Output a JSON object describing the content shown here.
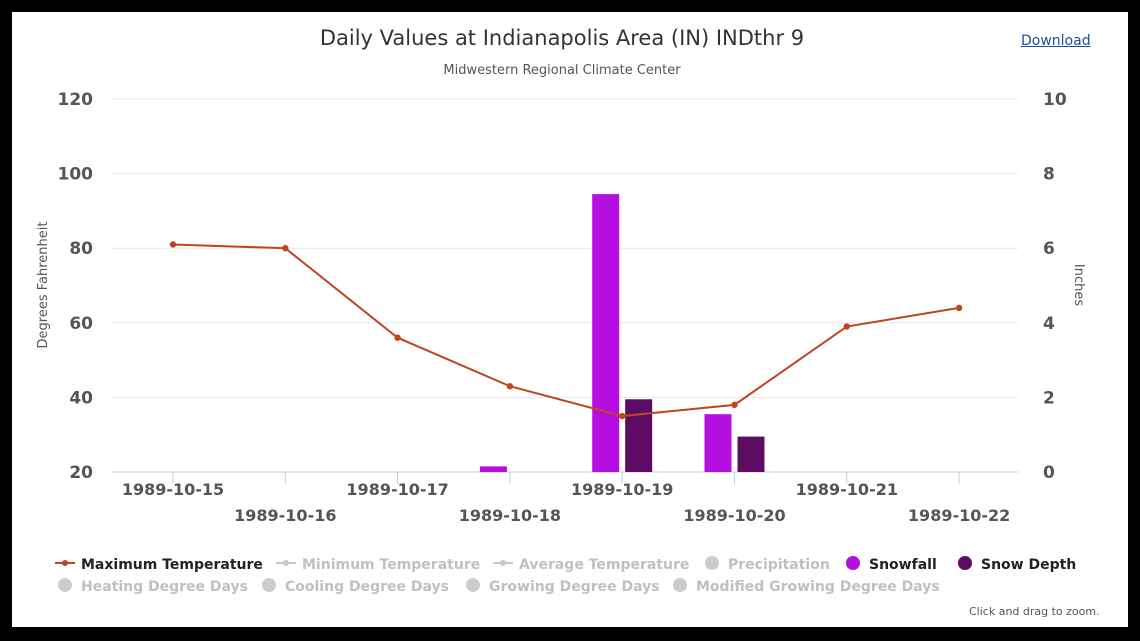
{
  "header": {
    "title": "Daily Values at Indianapolis Area (IN) INDthr 9",
    "subtitle": "Midwestern Regional Climate Center",
    "download_label": "Download"
  },
  "footer": {
    "zoom_hint": "Click and drag to zoom."
  },
  "chart_data": {
    "type": "bar",
    "categories": [
      "1989-10-15",
      "1989-10-16",
      "1989-10-17",
      "1989-10-18",
      "1989-10-19",
      "1989-10-20",
      "1989-10-21",
      "1989-10-22"
    ],
    "ylabel_left": "Degrees Fahrenheit",
    "ylabel_right": "Inches",
    "ylim_left": [
      20,
      120
    ],
    "ylim_right": [
      0,
      10
    ],
    "yticks_left": [
      "120",
      "100",
      "80",
      "60",
      "40",
      "20"
    ],
    "yticks_right": [
      "10",
      "8",
      "6",
      "4",
      "2",
      "0"
    ],
    "grid": true,
    "series": [
      {
        "name": "Maximum Temperature",
        "type": "line",
        "axis": "left",
        "color": "#c0451f",
        "values": [
          81,
          80,
          56,
          43,
          35,
          38,
          59,
          64
        ]
      },
      {
        "name": "Snowfall",
        "type": "bar",
        "axis": "right",
        "color": "#b50ee0",
        "values": [
          0,
          0,
          0,
          0.15,
          7.45,
          1.55,
          0,
          0
        ]
      },
      {
        "name": "Snow Depth",
        "type": "bar",
        "axis": "right",
        "color": "#5c0d63",
        "values": [
          0,
          0,
          0,
          0,
          1.95,
          0.95,
          0,
          0
        ]
      }
    ],
    "legend": {
      "placement": "bottom-left",
      "items": [
        {
          "name": "Maximum Temperature",
          "marker": "line",
          "active": true,
          "color": "#c0451f"
        },
        {
          "name": "Minimum Temperature",
          "marker": "line",
          "active": false,
          "color": "#c8c8c8"
        },
        {
          "name": "Average Temperature",
          "marker": "line",
          "active": false,
          "color": "#c8c8c8"
        },
        {
          "name": "Precipitation",
          "marker": "circle",
          "active": false,
          "color": "#cccccc"
        },
        {
          "name": "Snowfall",
          "marker": "circle",
          "active": true,
          "color": "#b50ee0"
        },
        {
          "name": "Snow Depth",
          "marker": "circle",
          "active": true,
          "color": "#5c0d63"
        },
        {
          "name": "Heating Degree Days",
          "marker": "circle",
          "active": false,
          "color": "#cccccc"
        },
        {
          "name": "Cooling Degree Days",
          "marker": "circle",
          "active": false,
          "color": "#cccccc"
        },
        {
          "name": "Growing Degree Days",
          "marker": "circle",
          "active": false,
          "color": "#cccccc"
        },
        {
          "name": "Modified Growing Degree Days",
          "marker": "circle",
          "active": false,
          "color": "#cccccc"
        }
      ]
    }
  }
}
